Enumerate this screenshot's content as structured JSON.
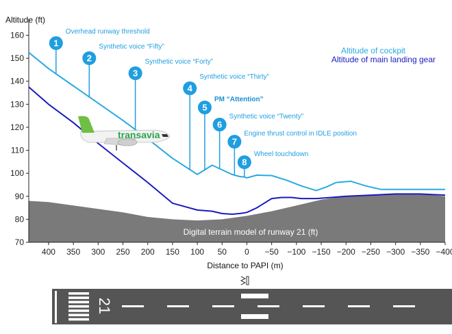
{
  "chart_data": {
    "type": "line",
    "title": "",
    "ylabel": "Altitude (ft)",
    "xlabel": "Distance to PAPI (m)",
    "xlim": [
      440,
      -400
    ],
    "ylim": [
      70,
      167
    ],
    "x_ticks": [
      400,
      350,
      300,
      250,
      200,
      150,
      100,
      50,
      0,
      -50,
      -100,
      -150,
      -200,
      -250,
      -300,
      -350,
      -400
    ],
    "x_tick_labels": [
      "400",
      "350",
      "300",
      "250",
      "200",
      "150",
      "100",
      "50",
      "0",
      "−50",
      "−100",
      "−150",
      "−200",
      "−250",
      "−300",
      "−350",
      "−400"
    ],
    "y_ticks": [
      70,
      80,
      90,
      100,
      110,
      120,
      130,
      140,
      150,
      160
    ],
    "y_tick_labels": [
      "70",
      "80",
      "90",
      "100",
      "110",
      "120",
      "130",
      "140",
      "150",
      "160"
    ],
    "series": [
      {
        "name": "Altitude of cockpit",
        "color": "#29aae1",
        "x": [
          440,
          400,
          350,
          300,
          250,
          200,
          150,
          100,
          70,
          50,
          30,
          15,
          5,
          0,
          -20,
          -50,
          -80,
          -110,
          -140,
          -160,
          -180,
          -210,
          -240,
          -270,
          -300,
          -350,
          -400
        ],
        "y": [
          152.5,
          145.5,
          138,
          130.5,
          123,
          115,
          106.5,
          99.5,
          103.5,
          101.5,
          99.5,
          98.6,
          98.4,
          98,
          99.2,
          99,
          97,
          94.5,
          92.5,
          94,
          96,
          96.5,
          94.5,
          93,
          93,
          93,
          93
        ]
      },
      {
        "name": "Altitude of main landing gear",
        "color": "#1a1abf",
        "x": [
          440,
          400,
          350,
          300,
          250,
          200,
          150,
          100,
          70,
          50,
          30,
          15,
          5,
          0,
          -20,
          -50,
          -70,
          -90,
          -110,
          -140,
          -170,
          -200,
          -250,
          -300,
          -350,
          -400
        ],
        "y": [
          137.5,
          130,
          122,
          113,
          104.5,
          96,
          87,
          84,
          83.5,
          82.5,
          82.2,
          82.5,
          82.8,
          83,
          85,
          89,
          89.5,
          89.5,
          89,
          89,
          89.5,
          90,
          90.5,
          91,
          91,
          90.5
        ]
      }
    ],
    "terrain": {
      "name": "Digital terrain model of runway 21 (ft)",
      "color": "#7a7a7a",
      "x": [
        440,
        400,
        350,
        300,
        250,
        200,
        150,
        100,
        50,
        0,
        -50,
        -100,
        -150,
        -200,
        -250,
        -300,
        -350,
        -400
      ],
      "y": [
        88,
        87.5,
        86,
        84.5,
        83,
        81,
        80,
        79.5,
        80,
        81.5,
        83.5,
        86,
        88.5,
        90,
        90.5,
        91,
        91,
        90
      ]
    },
    "legend": {
      "placement": "top-right",
      "entries": [
        "Altitude of cockpit",
        "Altitude of main landing gear"
      ]
    },
    "annotations": [
      {
        "number": "1",
        "text": "Overhead runway threshold",
        "x": 385
      },
      {
        "number": "2",
        "text": "Synthetic voice “Fifty”",
        "x": 318
      },
      {
        "number": "3",
        "text": "Synthetic voice “Forty”",
        "x": 225
      },
      {
        "number": "4",
        "text": "Synthetic voice “Thirty”",
        "x": 115
      },
      {
        "number": "5",
        "text": "PM “Attention”",
        "x": 85
      },
      {
        "number": "6",
        "text": "Synthetic voice “Twenty”",
        "x": 55
      },
      {
        "number": "7",
        "text": "Engine thrust control in IDLE position",
        "x": 25
      },
      {
        "number": "8",
        "text": "Wheel touchdown",
        "x": 5
      }
    ],
    "aircraft": {
      "livery_text": "transavia"
    },
    "runway": {
      "number": "21"
    }
  },
  "colors": {
    "cockpit": "#29aae1",
    "gear": "#1a1abf",
    "badge": "#1f9ee0",
    "terrain": "#7a7a7a",
    "runway": "#555555"
  }
}
